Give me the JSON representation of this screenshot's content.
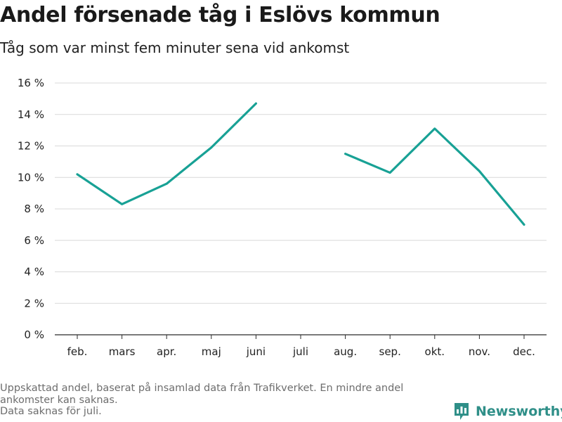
{
  "title": "Andel försenade tåg i Eslövs kommun",
  "subtitle": "Tåg som var minst fem minuter sena vid ankomst",
  "footnote": {
    "line1": "Uppskattad andel, baserat på insamlad data från Trafikverket. En mindre andel",
    "line2": "ankomster kan saknas.",
    "line3": "Data saknas för juli."
  },
  "brand": {
    "name": "Newsworthy",
    "icon": "newsworthy-bar-chart-logo-icon"
  },
  "colors": {
    "line": "#18a195",
    "grid": "#d9d9d9",
    "brand": "#2f8f88"
  },
  "chart_data": {
    "type": "line",
    "categories": [
      "feb.",
      "mars",
      "apr.",
      "maj",
      "juni",
      "juli",
      "aug.",
      "sep.",
      "okt.",
      "nov.",
      "dec."
    ],
    "series": [
      {
        "values": [
          10.2,
          8.3,
          9.6,
          11.9,
          14.7,
          null,
          11.5,
          10.3,
          13.1,
          10.4,
          7.0
        ]
      }
    ],
    "y_ticks": [
      0,
      2,
      4,
      6,
      8,
      10,
      12,
      14,
      16
    ],
    "y_tick_suffix": " %",
    "ylim": [
      0,
      16
    ],
    "xlabel": "",
    "ylabel": "",
    "grid": "horizontal",
    "legend": "none"
  }
}
